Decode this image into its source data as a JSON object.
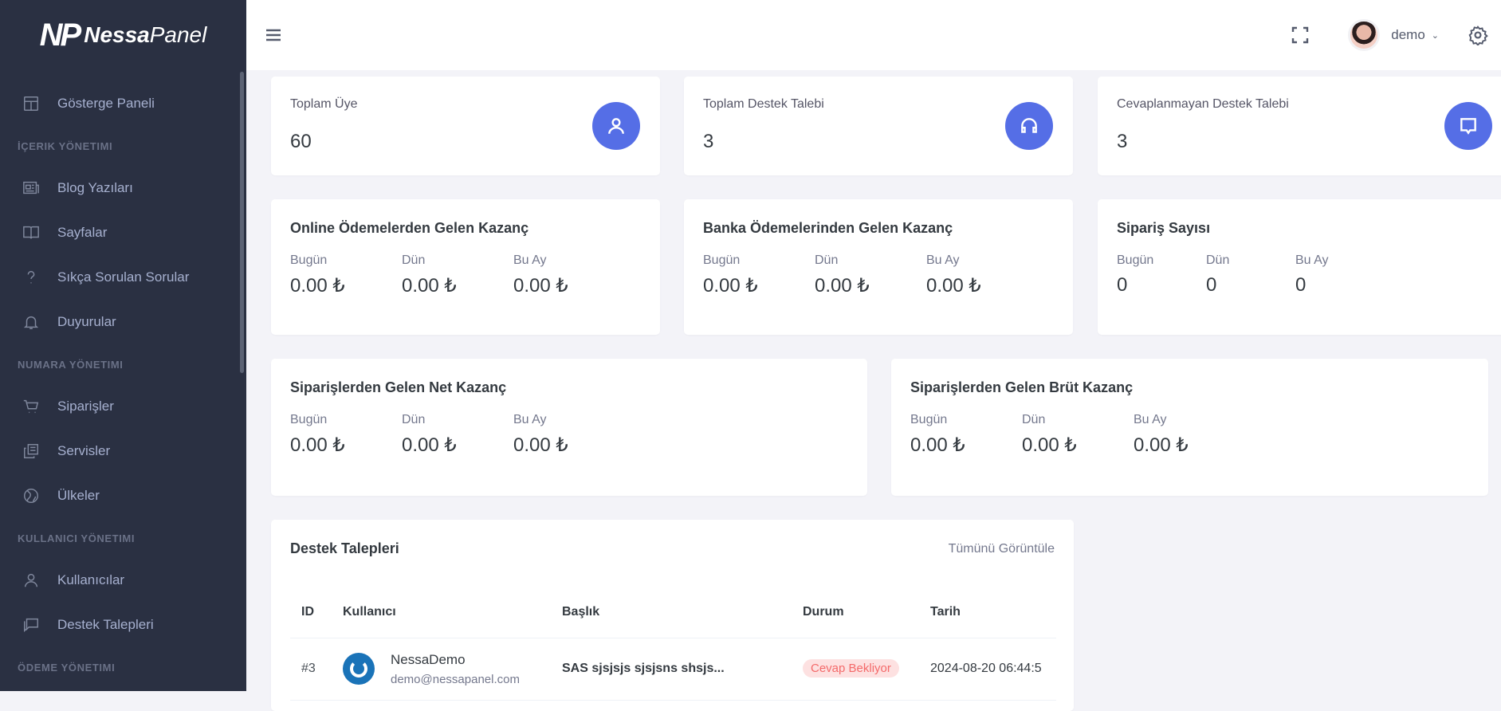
{
  "brand": {
    "logo_mark": "NP",
    "name_bold": "Nessa",
    "name_light": "Panel"
  },
  "sidebar": {
    "items": [
      {
        "type": "item",
        "label": "Gösterge Paneli",
        "icon": "layout-icon"
      },
      {
        "type": "title",
        "label": "İÇERIK YÖNETIMI"
      },
      {
        "type": "item",
        "label": "Blog Yazıları",
        "icon": "newspaper-icon"
      },
      {
        "type": "item",
        "label": "Sayfalar",
        "icon": "book-icon"
      },
      {
        "type": "item",
        "label": "Sıkça Sorulan Sorular",
        "icon": "question-icon"
      },
      {
        "type": "item",
        "label": "Duyurular",
        "icon": "bell-icon"
      },
      {
        "type": "title",
        "label": "NUMARA YÖNETIMI"
      },
      {
        "type": "item",
        "label": "Siparişler",
        "icon": "cart-icon"
      },
      {
        "type": "item",
        "label": "Servisler",
        "icon": "copy-icon"
      },
      {
        "type": "item",
        "label": "Ülkeler",
        "icon": "globe-icon"
      },
      {
        "type": "title",
        "label": "KULLANICI YÖNETIMI"
      },
      {
        "type": "item",
        "label": "Kullanıcılar",
        "icon": "user-icon"
      },
      {
        "type": "item",
        "label": "Destek Talepleri",
        "icon": "chat-icon"
      },
      {
        "type": "title",
        "label": "ÖDEME YÖNETIMI"
      }
    ]
  },
  "header": {
    "username": "demo"
  },
  "mini_cards": [
    {
      "label": "Toplam Üye",
      "value": "60",
      "icon": "user-icon"
    },
    {
      "label": "Toplam Destek Talebi",
      "value": "3",
      "icon": "headset-icon"
    },
    {
      "label": "Cevaplanmayan Destek Talebi",
      "value": "3",
      "icon": "message-icon"
    }
  ],
  "stat_cards": [
    {
      "title": "Online Ödemelerden Gelen Kazanç",
      "labels": [
        "Bugün",
        "Dün",
        "Bu Ay"
      ],
      "values": [
        "0.00 ₺",
        "0.00 ₺",
        "0.00 ₺"
      ]
    },
    {
      "title": "Banka Ödemelerinden Gelen Kazanç",
      "labels": [
        "Bugün",
        "Dün",
        "Bu Ay"
      ],
      "values": [
        "0.00 ₺",
        "0.00 ₺",
        "0.00 ₺"
      ]
    },
    {
      "title": "Sipariş Sayısı",
      "labels": [
        "Bugün",
        "Dün",
        "Bu Ay"
      ],
      "values": [
        "0",
        "0",
        "0"
      ]
    },
    {
      "title": "Siparişlerden Gelen Net Kazanç",
      "labels": [
        "Bugün",
        "Dün",
        "Bu Ay"
      ],
      "values": [
        "0.00 ₺",
        "0.00 ₺",
        "0.00 ₺"
      ]
    },
    {
      "title": "Siparişlerden Gelen Brüt Kazanç",
      "labels": [
        "Bugün",
        "Dün",
        "Bu Ay"
      ],
      "values": [
        "0.00 ₺",
        "0.00 ₺",
        "0.00 ₺"
      ]
    }
  ],
  "tickets": {
    "title": "Destek Talepleri",
    "view_all": "Tümünü Görüntüle",
    "columns": [
      "ID",
      "Kullanıcı",
      "Başlık",
      "Durum",
      "Tarih"
    ],
    "rows": [
      {
        "id": "#3",
        "name": "NessaDemo",
        "email": "demo@nessapanel.com",
        "subject": "SAS sjsjsjs sjsjsns shsjs...",
        "status": "Cevap Bekliyor",
        "date": "2024-08-20 06:44:5"
      }
    ]
  },
  "colors": {
    "sidebar": "#2a3042",
    "accent": "#556ee6",
    "danger": "#f46a6a"
  }
}
